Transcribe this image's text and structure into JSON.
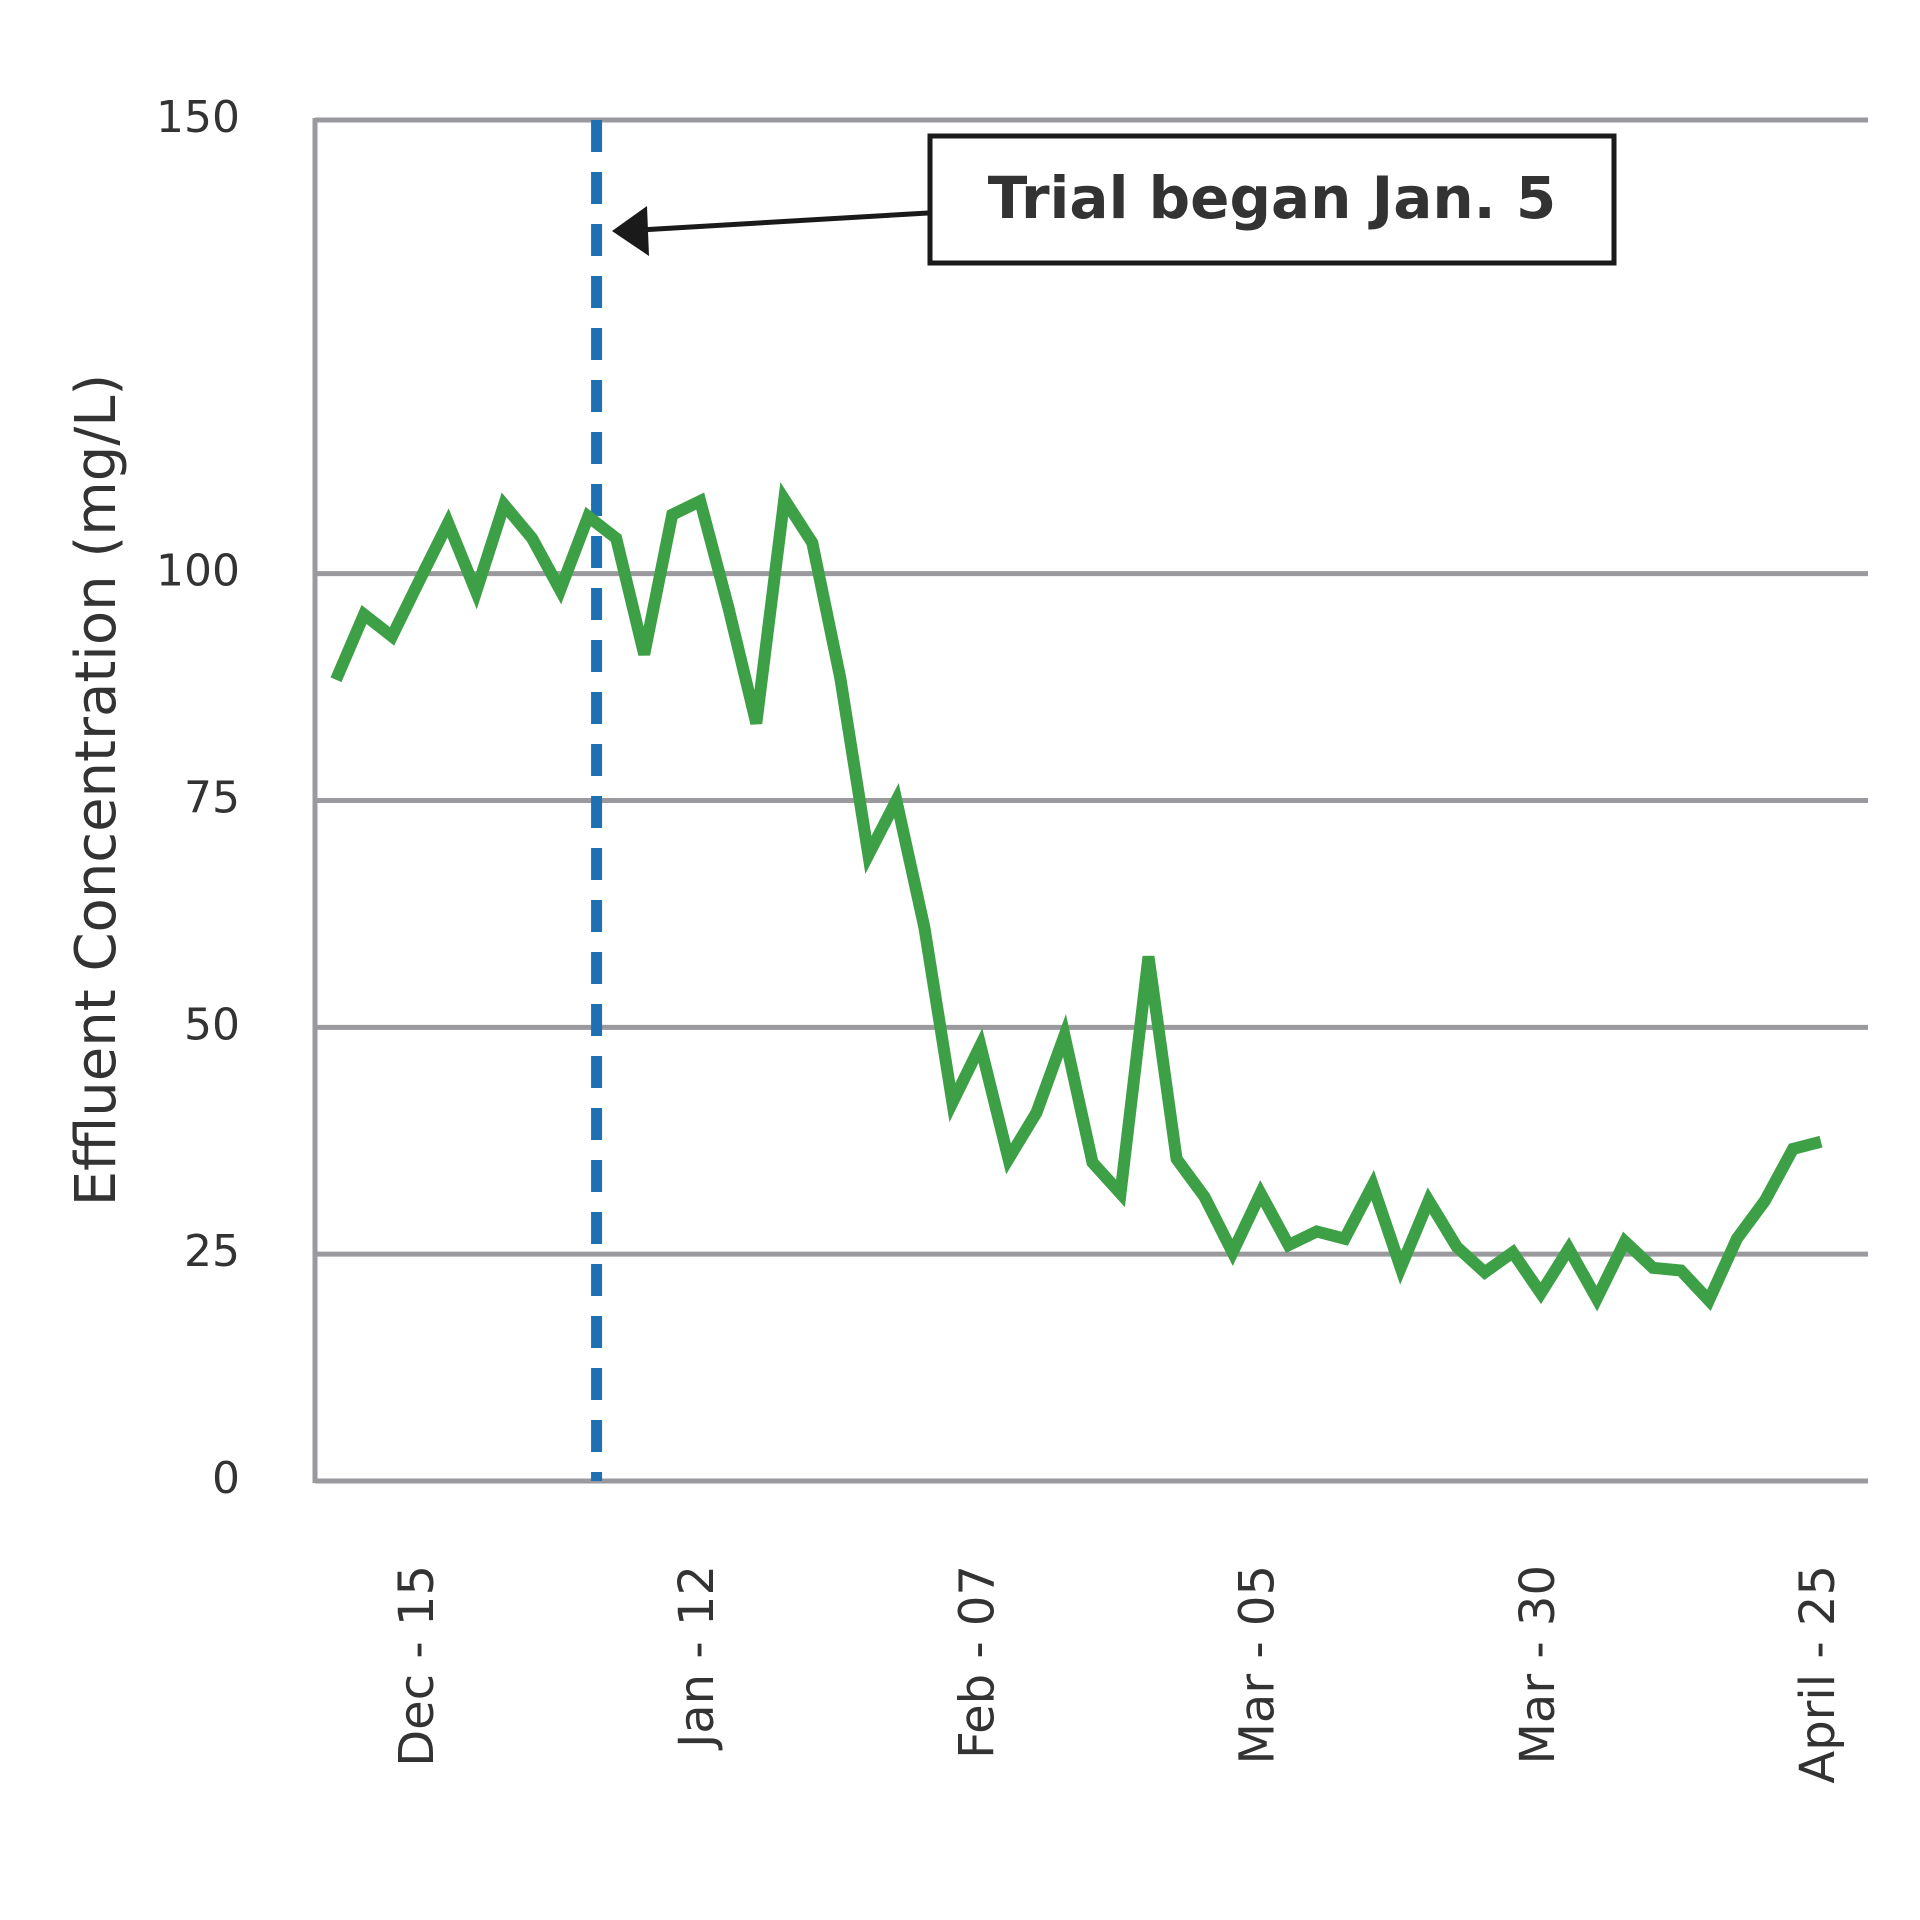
{
  "chart_data": {
    "type": "line",
    "y_label": "Effluent Concentration (mg/L)",
    "annotation": "Trial began Jan. 5",
    "categories": [
      null,
      null,
      null,
      "Dec - 15",
      null,
      null,
      null,
      null,
      null,
      null,
      null,
      null,
      null,
      "Jan - 12",
      null,
      null,
      null,
      null,
      null,
      null,
      null,
      null,
      null,
      "Feb - 07",
      null,
      null,
      null,
      null,
      null,
      null,
      null,
      null,
      null,
      "Mar - 05",
      null,
      null,
      null,
      null,
      null,
      null,
      null,
      null,
      null,
      "Mar - 30",
      null,
      null,
      null,
      null,
      null,
      null,
      null,
      null,
      null,
      "April - 25"
    ],
    "series": [
      {
        "name": null,
        "color": "#3da047",
        "values": [
          88.3,
          95.5,
          93.1,
          99.4,
          105.6,
          98.0,
          107.6,
          103.9,
          98.2,
          106.3,
          103.9,
          91.1,
          106.5,
          108.0,
          96.3,
          83.5,
          108.2,
          103.4,
          88.5,
          69.0,
          75.0,
          61.0,
          41.7,
          48.0,
          35.5,
          40.6,
          49.1,
          35.1,
          31.7,
          57.8,
          35.5,
          31.3,
          25.2,
          31.7,
          26.0,
          27.5,
          26.7,
          32.6,
          23.5,
          30.9,
          25.8,
          23.0,
          25.2,
          20.7,
          25.6,
          20.1,
          26.4,
          23.5,
          23.2,
          19.9,
          26.7,
          30.9,
          36.6,
          37.4
        ]
      }
    ],
    "ylim": [
      0,
      150
    ],
    "yticks": [
      0,
      25,
      50,
      75,
      100,
      150
    ],
    "grid": true
  }
}
